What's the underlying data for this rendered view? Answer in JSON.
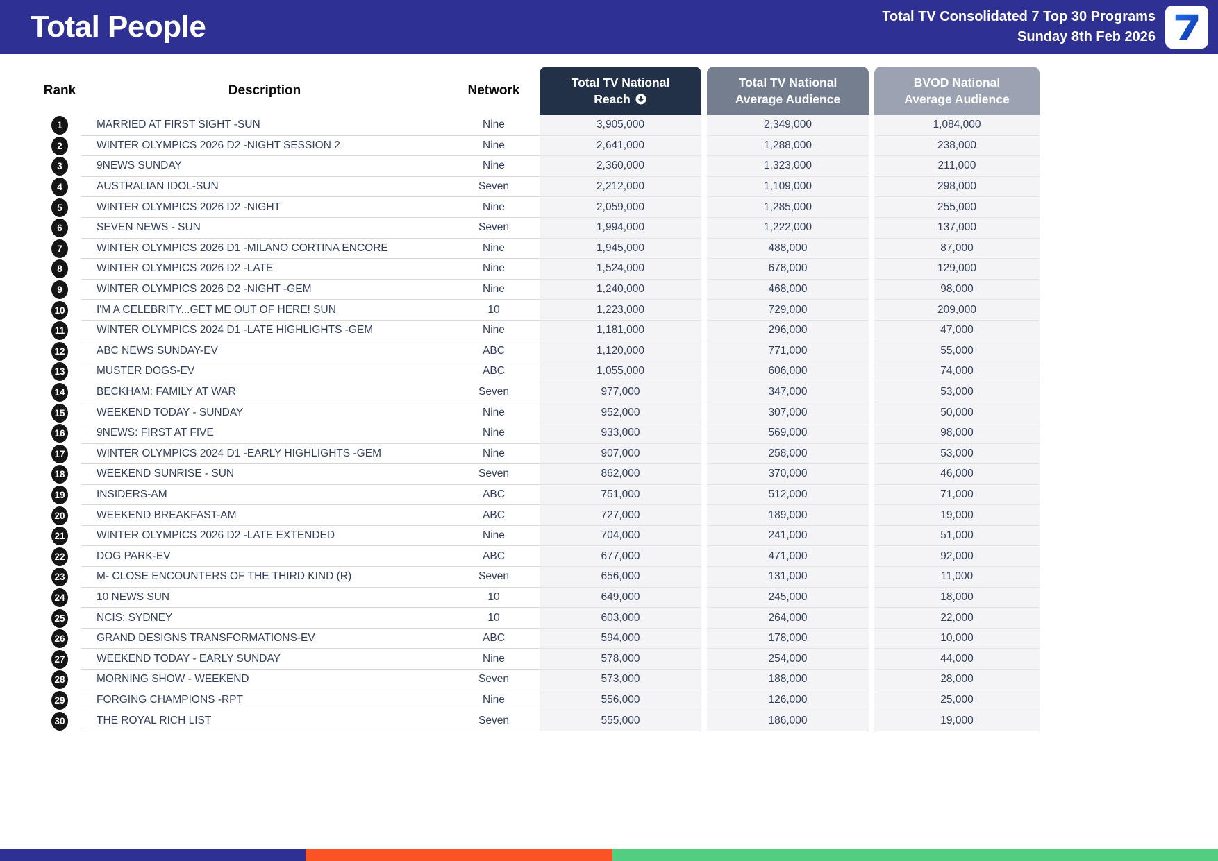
{
  "header": {
    "title": "Total People",
    "subtitle_line1": "Total TV Consolidated 7 Top 30 Programs",
    "subtitle_line2": "Sunday 8th Feb 2026",
    "logo_text": "7"
  },
  "colors": {
    "banner": "#2E3192",
    "reach_header": "#233147",
    "avg_header": "#747E8F",
    "bvod_header": "#9BA3B2",
    "row_text": "#33405C",
    "value_cell_bg": "#F4F4F6",
    "footer_blue": "#2E3192",
    "footer_orange": "#FB5226",
    "footer_green": "#52CD82"
  },
  "table": {
    "columns": {
      "rank": "Rank",
      "description": "Description",
      "network": "Network",
      "reach_line1": "Total TV National",
      "reach_line2": "Reach",
      "avg_line1": "Total TV National",
      "avg_line2": "Average Audience",
      "bvod_line1": "BVOD National",
      "bvod_line2": "Average Audience"
    },
    "sort_icon": "arrow-circle-down",
    "rows": [
      {
        "rank": "1",
        "description": "MARRIED AT FIRST SIGHT -SUN",
        "network": "Nine",
        "reach": "3,905,000",
        "avg": "2,349,000",
        "bvod": "1,084,000"
      },
      {
        "rank": "2",
        "description": "WINTER OLYMPICS 2026 D2 -NIGHT SESSION 2",
        "network": "Nine",
        "reach": "2,641,000",
        "avg": "1,288,000",
        "bvod": "238,000"
      },
      {
        "rank": "3",
        "description": "9NEWS SUNDAY",
        "network": "Nine",
        "reach": "2,360,000",
        "avg": "1,323,000",
        "bvod": "211,000"
      },
      {
        "rank": "4",
        "description": "AUSTRALIAN IDOL-SUN",
        "network": "Seven",
        "reach": "2,212,000",
        "avg": "1,109,000",
        "bvod": "298,000"
      },
      {
        "rank": "5",
        "description": "WINTER OLYMPICS 2026 D2 -NIGHT",
        "network": "Nine",
        "reach": "2,059,000",
        "avg": "1,285,000",
        "bvod": "255,000"
      },
      {
        "rank": "6",
        "description": "SEVEN NEWS - SUN",
        "network": "Seven",
        "reach": "1,994,000",
        "avg": "1,222,000",
        "bvod": "137,000"
      },
      {
        "rank": "7",
        "description": "WINTER OLYMPICS 2026 D1 -MILANO CORTINA ENCORE",
        "network": "Nine",
        "reach": "1,945,000",
        "avg": "488,000",
        "bvod": "87,000"
      },
      {
        "rank": "8",
        "description": "WINTER OLYMPICS 2026 D2 -LATE",
        "network": "Nine",
        "reach": "1,524,000",
        "avg": "678,000",
        "bvod": "129,000"
      },
      {
        "rank": "9",
        "description": "WINTER OLYMPICS 2026 D2 -NIGHT -GEM",
        "network": "Nine",
        "reach": "1,240,000",
        "avg": "468,000",
        "bvod": "98,000"
      },
      {
        "rank": "10",
        "description": "I'M A CELEBRITY...GET ME OUT OF HERE! SUN",
        "network": "10",
        "reach": "1,223,000",
        "avg": "729,000",
        "bvod": "209,000"
      },
      {
        "rank": "11",
        "description": "WINTER OLYMPICS 2024 D1 -LATE HIGHLIGHTS -GEM",
        "network": "Nine",
        "reach": "1,181,000",
        "avg": "296,000",
        "bvod": "47,000"
      },
      {
        "rank": "12",
        "description": "ABC NEWS SUNDAY-EV",
        "network": "ABC",
        "reach": "1,120,000",
        "avg": "771,000",
        "bvod": "55,000"
      },
      {
        "rank": "13",
        "description": "MUSTER DOGS-EV",
        "network": "ABC",
        "reach": "1,055,000",
        "avg": "606,000",
        "bvod": "74,000"
      },
      {
        "rank": "14",
        "description": "BECKHAM: FAMILY AT WAR",
        "network": "Seven",
        "reach": "977,000",
        "avg": "347,000",
        "bvod": "53,000"
      },
      {
        "rank": "15",
        "description": "WEEKEND TODAY - SUNDAY",
        "network": "Nine",
        "reach": "952,000",
        "avg": "307,000",
        "bvod": "50,000"
      },
      {
        "rank": "16",
        "description": "9NEWS: FIRST AT FIVE",
        "network": "Nine",
        "reach": "933,000",
        "avg": "569,000",
        "bvod": "98,000"
      },
      {
        "rank": "17",
        "description": "WINTER OLYMPICS 2024 D1 -EARLY HIGHLIGHTS -GEM",
        "network": "Nine",
        "reach": "907,000",
        "avg": "258,000",
        "bvod": "53,000"
      },
      {
        "rank": "18",
        "description": "WEEKEND SUNRISE - SUN",
        "network": "Seven",
        "reach": "862,000",
        "avg": "370,000",
        "bvod": "46,000"
      },
      {
        "rank": "19",
        "description": "INSIDERS-AM",
        "network": "ABC",
        "reach": "751,000",
        "avg": "512,000",
        "bvod": "71,000"
      },
      {
        "rank": "20",
        "description": "WEEKEND BREAKFAST-AM",
        "network": "ABC",
        "reach": "727,000",
        "avg": "189,000",
        "bvod": "19,000"
      },
      {
        "rank": "21",
        "description": "WINTER OLYMPICS 2026 D2 -LATE EXTENDED",
        "network": "Nine",
        "reach": "704,000",
        "avg": "241,000",
        "bvod": "51,000"
      },
      {
        "rank": "22",
        "description": "DOG PARK-EV",
        "network": "ABC",
        "reach": "677,000",
        "avg": "471,000",
        "bvod": "92,000"
      },
      {
        "rank": "23",
        "description": "M- CLOSE ENCOUNTERS OF THE THIRD KIND (R)",
        "network": "Seven",
        "reach": "656,000",
        "avg": "131,000",
        "bvod": "11,000"
      },
      {
        "rank": "24",
        "description": "10 NEWS SUN",
        "network": "10",
        "reach": "649,000",
        "avg": "245,000",
        "bvod": "18,000"
      },
      {
        "rank": "25",
        "description": "NCIS: SYDNEY",
        "network": "10",
        "reach": "603,000",
        "avg": "264,000",
        "bvod": "22,000"
      },
      {
        "rank": "26",
        "description": "GRAND DESIGNS TRANSFORMATIONS-EV",
        "network": "ABC",
        "reach": "594,000",
        "avg": "178,000",
        "bvod": "10,000"
      },
      {
        "rank": "27",
        "description": "WEEKEND TODAY - EARLY SUNDAY",
        "network": "Nine",
        "reach": "578,000",
        "avg": "254,000",
        "bvod": "44,000"
      },
      {
        "rank": "28",
        "description": "MORNING SHOW - WEEKEND",
        "network": "Seven",
        "reach": "573,000",
        "avg": "188,000",
        "bvod": "28,000"
      },
      {
        "rank": "29",
        "description": "FORGING CHAMPIONS -RPT",
        "network": "Nine",
        "reach": "556,000",
        "avg": "126,000",
        "bvod": "25,000"
      },
      {
        "rank": "30",
        "description": "THE ROYAL RICH LIST",
        "network": "Seven",
        "reach": "555,000",
        "avg": "186,000",
        "bvod": "19,000"
      }
    ]
  },
  "footer": {
    "segments": [
      {
        "name": "blue",
        "color_key": "footer_blue",
        "width_pct": 25.1
      },
      {
        "name": "orange",
        "color_key": "footer_orange",
        "width_pct": 25.2
      },
      {
        "name": "green",
        "color_key": "footer_green",
        "width_pct": 49.7
      }
    ]
  }
}
